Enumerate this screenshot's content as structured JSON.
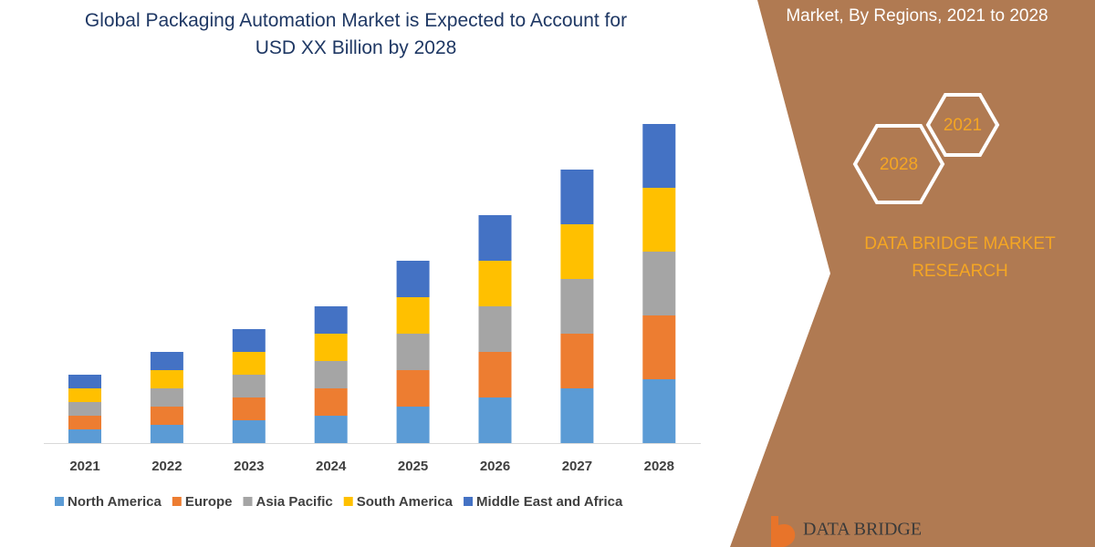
{
  "chart_data": {
    "type": "bar",
    "stacked": true,
    "title": "Global Packaging Automation Market is Expected to Account for USD XX Billion by 2028",
    "categories": [
      "2021",
      "2022",
      "2023",
      "2024",
      "2025",
      "2026",
      "2027",
      "2028"
    ],
    "series": [
      {
        "name": "North America",
        "color": "#5b9bd5",
        "values": [
          3,
          4,
          5,
          6,
          8,
          10,
          12,
          14
        ]
      },
      {
        "name": "Europe",
        "color": "#ed7d31",
        "values": [
          3,
          4,
          5,
          6,
          8,
          10,
          12,
          14
        ]
      },
      {
        "name": "Asia Pacific",
        "color": "#a5a5a5",
        "values": [
          3,
          4,
          5,
          6,
          8,
          10,
          12,
          14
        ]
      },
      {
        "name": "South America",
        "color": "#ffc000",
        "values": [
          3,
          4,
          5,
          6,
          8,
          10,
          12,
          14
        ]
      },
      {
        "name": "Middle East and Africa",
        "color": "#4472c4",
        "values": [
          3,
          4,
          5,
          6,
          8,
          10,
          12,
          14
        ]
      }
    ],
    "legend": "bottom"
  },
  "side_panel": {
    "heading": "Market, By Regions, 2021 to 2028",
    "badges": [
      "2021",
      "2028"
    ],
    "brand": [
      "DATA BRIDGE MARKET",
      "RESEARCH"
    ]
  },
  "logo": "DATA BRIDGE"
}
